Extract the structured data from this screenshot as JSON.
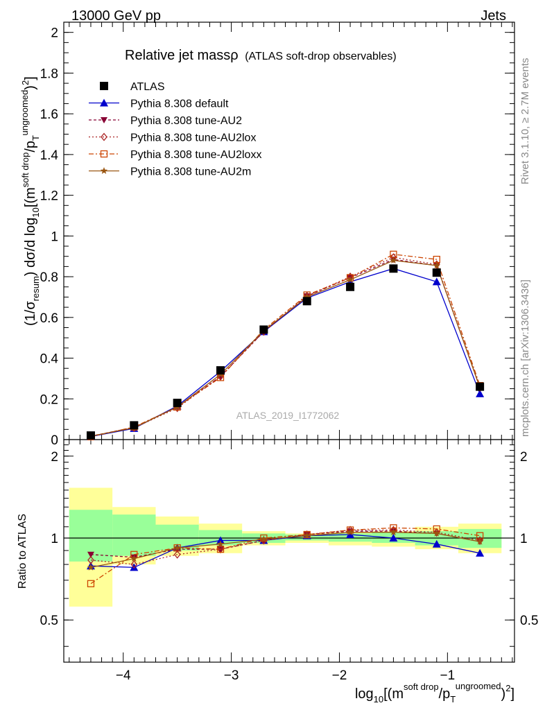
{
  "header": {
    "energy_label": "13000 GeV pp",
    "process_label": "Jets"
  },
  "side_labels": {
    "rivet": "Rivet 3.1.10, ≥ 2.7M events",
    "source": "mcplots.cern.ch [arXiv:1306.3436]"
  },
  "chart_data": {
    "type": "line",
    "title": "Relative jet massρ",
    "subtitle": "(ATLAS soft-drop observables)",
    "analysis_id": "ATLAS_2019_I1772062",
    "xlabel": "log10[(m^{soft drop}/p_T^{ungroomed})^2]",
    "ylabel": "(1/σ_resum) dσ/d log10[(m^{soft drop}/p_T^{ungroomed})^2]",
    "ratio_ylabel": "Ratio to ATLAS",
    "xlim": [
      -4.55,
      -0.38
    ],
    "ylim": [
      0,
      2.05
    ],
    "ratio_ylim": [
      0.35,
      2.3
    ],
    "log_ratio": true,
    "x_ticks": [
      -4,
      -3,
      -2,
      -1
    ],
    "x_tick_labels": [
      "−4",
      "−3",
      "−2",
      "−1"
    ],
    "y_ticks": [
      0,
      0.2,
      0.4,
      0.6,
      0.8,
      1,
      1.2,
      1.4,
      1.6,
      1.8,
      2
    ],
    "y_tick_labels": [
      "0",
      "0.2",
      "0.4",
      "0.6",
      "0.8",
      "1",
      "1.2",
      "1.4",
      "1.6",
      "1.8",
      "2"
    ],
    "ratio_ticks": [
      0.5,
      1,
      2
    ],
    "ratio_tick_labels": [
      "0.5",
      "1",
      "2"
    ],
    "legend_position": "top-left",
    "bins": [
      [
        -4.5,
        -4.1
      ],
      [
        -4.1,
        -3.7
      ],
      [
        -3.7,
        -3.3
      ],
      [
        -3.3,
        -2.9
      ],
      [
        -2.9,
        -2.5
      ],
      [
        -2.5,
        -2.1
      ],
      [
        -2.1,
        -1.7
      ],
      [
        -1.7,
        -1.3
      ],
      [
        -1.3,
        -0.9
      ],
      [
        -0.9,
        -0.5
      ]
    ],
    "x": [
      -4.3,
      -3.9,
      -3.5,
      -3.1,
      -2.7,
      -2.3,
      -1.9,
      -1.5,
      -1.1,
      -0.7
    ],
    "data": {
      "name": "ATLAS",
      "values": [
        0.02,
        0.07,
        0.18,
        0.34,
        0.54,
        0.68,
        0.75,
        0.84,
        0.82,
        0.26
      ],
      "band_inner": [
        [
          0.82,
          1.27
        ],
        [
          0.86,
          1.22
        ],
        [
          0.9,
          1.12
        ],
        [
          0.94,
          1.07
        ],
        [
          0.96,
          1.04
        ],
        [
          0.98,
          1.03
        ],
        [
          0.97,
          1.04
        ],
        [
          0.96,
          1.05
        ],
        [
          0.94,
          1.06
        ],
        [
          0.92,
          1.08
        ]
      ],
      "band_outer": [
        [
          0.56,
          1.53
        ],
        [
          0.8,
          1.3
        ],
        [
          0.86,
          1.2
        ],
        [
          0.88,
          1.13
        ],
        [
          0.94,
          1.06
        ],
        [
          0.96,
          1.04
        ],
        [
          0.94,
          1.05
        ],
        [
          0.93,
          1.06
        ],
        [
          0.91,
          1.1
        ],
        [
          0.88,
          1.13
        ]
      ]
    },
    "series": [
      {
        "name": "Pythia 8.308 default",
        "color": "#0000cc",
        "dash": "",
        "marker": "triangle-up",
        "values": [
          0.015,
          0.055,
          0.165,
          0.335,
          0.53,
          0.695,
          0.775,
          0.84,
          0.775,
          0.225
        ],
        "ratio": [
          0.79,
          0.78,
          0.92,
          0.98,
          0.98,
          1.02,
          1.03,
          1.0,
          0.95,
          0.88
        ]
      },
      {
        "name": "Pythia 8.308 tune-AU2",
        "color": "#880033",
        "dash": "4,3",
        "marker": "triangle-down",
        "values": [
          0.017,
          0.06,
          0.16,
          0.31,
          0.53,
          0.705,
          0.795,
          0.885,
          0.855,
          0.255
        ],
        "ratio": [
          0.87,
          0.85,
          0.91,
          0.91,
          0.98,
          1.03,
          1.06,
          1.06,
          1.04,
          0.97
        ]
      },
      {
        "name": "Pythia 8.308 tune-AU2lox",
        "color": "#aa2222",
        "dash": "2,3",
        "marker": "diamond-open",
        "values": [
          0.016,
          0.058,
          0.155,
          0.31,
          0.53,
          0.705,
          0.8,
          0.895,
          0.86,
          0.255
        ],
        "ratio": [
          0.83,
          0.8,
          0.87,
          0.91,
          0.98,
          1.03,
          1.07,
          1.07,
          1.05,
          0.98
        ]
      },
      {
        "name": "Pythia 8.308 tune-AU2loxx",
        "color": "#cc4400",
        "dash": "7,3,2,3",
        "marker": "square-open",
        "values": [
          0.014,
          0.062,
          0.16,
          0.305,
          0.54,
          0.71,
          0.795,
          0.91,
          0.885,
          0.265
        ],
        "ratio": [
          0.68,
          0.87,
          0.92,
          0.91,
          1.0,
          1.03,
          1.07,
          1.09,
          1.08,
          1.02
        ]
      },
      {
        "name": "Pythia 8.308 tune-AU2m",
        "color": "#995511",
        "dash": "",
        "marker": "star",
        "values": [
          0.017,
          0.058,
          0.16,
          0.32,
          0.535,
          0.7,
          0.785,
          0.88,
          0.855,
          0.255
        ],
        "ratio": [
          0.78,
          0.84,
          0.92,
          0.95,
          0.99,
          1.02,
          1.05,
          1.05,
          1.04,
          0.97
        ]
      }
    ]
  }
}
